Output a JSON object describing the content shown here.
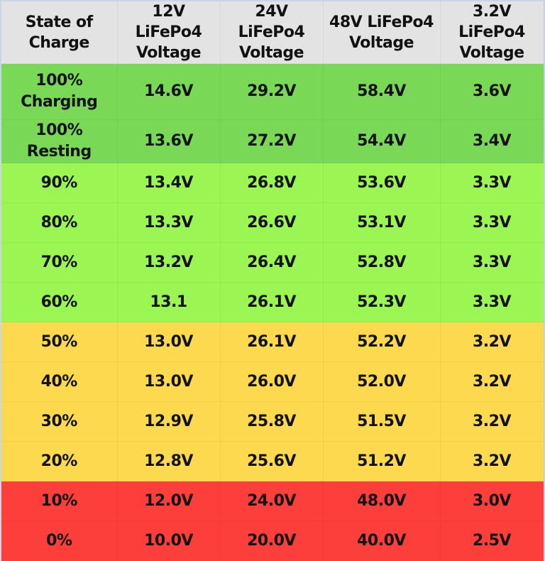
{
  "chart_data": {
    "type": "table",
    "title": "",
    "columns": [
      "State of Charge",
      "12V LiFePo4 Voltage",
      "24V LiFePo4 Voltage",
      "48V LiFePo4 Voltage",
      "3.2V LiFePo4 Voltage"
    ],
    "rows": [
      {
        "soc": "100% Charging",
        "v12": "14.6V",
        "v24": "29.2V",
        "v48": "58.4V",
        "v32": "3.6V",
        "band": "dark-green"
      },
      {
        "soc": "100% Resting",
        "v12": "13.6V",
        "v24": "27.2V",
        "v48": "54.4V",
        "v32": "3.4V",
        "band": "dark-green"
      },
      {
        "soc": "90%",
        "v12": "13.4V",
        "v24": "26.8V",
        "v48": "53.6V",
        "v32": "3.3V",
        "band": "light-green"
      },
      {
        "soc": "80%",
        "v12": "13.3V",
        "v24": "26.6V",
        "v48": "53.1V",
        "v32": "3.3V",
        "band": "light-green"
      },
      {
        "soc": "70%",
        "v12": "13.2V",
        "v24": "26.4V",
        "v48": "52.8V",
        "v32": "3.3V",
        "band": "light-green"
      },
      {
        "soc": "60%",
        "v12": "13.1",
        "v24": "26.1V",
        "v48": "52.3V",
        "v32": "3.3V",
        "band": "light-green"
      },
      {
        "soc": "50%",
        "v12": "13.0V",
        "v24": "26.1V",
        "v48": "52.2V",
        "v32": "3.2V",
        "band": "yellow"
      },
      {
        "soc": "40%",
        "v12": "13.0V",
        "v24": "26.0V",
        "v48": "52.0V",
        "v32": "3.2V",
        "band": "yellow"
      },
      {
        "soc": "30%",
        "v12": "12.9V",
        "v24": "25.8V",
        "v48": "51.5V",
        "v32": "3.2V",
        "band": "yellow"
      },
      {
        "soc": "20%",
        "v12": "12.8V",
        "v24": "25.6V",
        "v48": "51.2V",
        "v32": "3.2V",
        "band": "yellow"
      },
      {
        "soc": "10%",
        "v12": "12.0V",
        "v24": "24.0V",
        "v48": "48.0V",
        "v32": "3.0V",
        "band": "red"
      },
      {
        "soc": "0%",
        "v12": "10.0V",
        "v24": "20.0V",
        "v48": "40.0V",
        "v32": "2.5V",
        "band": "red"
      }
    ],
    "colors": {
      "header": "#e3e3e3",
      "dark-green": "#7ad857",
      "light-green": "#9bf552",
      "yellow": "#fdd950",
      "red": "#fd3f3b"
    }
  },
  "header": {
    "c0": {
      "l1": "State of",
      "l2": "Charge"
    },
    "c1": {
      "l1": "12V LiFePo4",
      "l2": "Voltage"
    },
    "c2": {
      "l1": "24V LiFePo4",
      "l2": "Voltage"
    },
    "c3": {
      "l1": "48V LiFePo4",
      "l2": "Voltage"
    },
    "c4": {
      "l1": "3.2V LiFePo4",
      "l2": "Voltage"
    }
  },
  "row0_label": {
    "l1": "100%",
    "l2": "Charging"
  }
}
